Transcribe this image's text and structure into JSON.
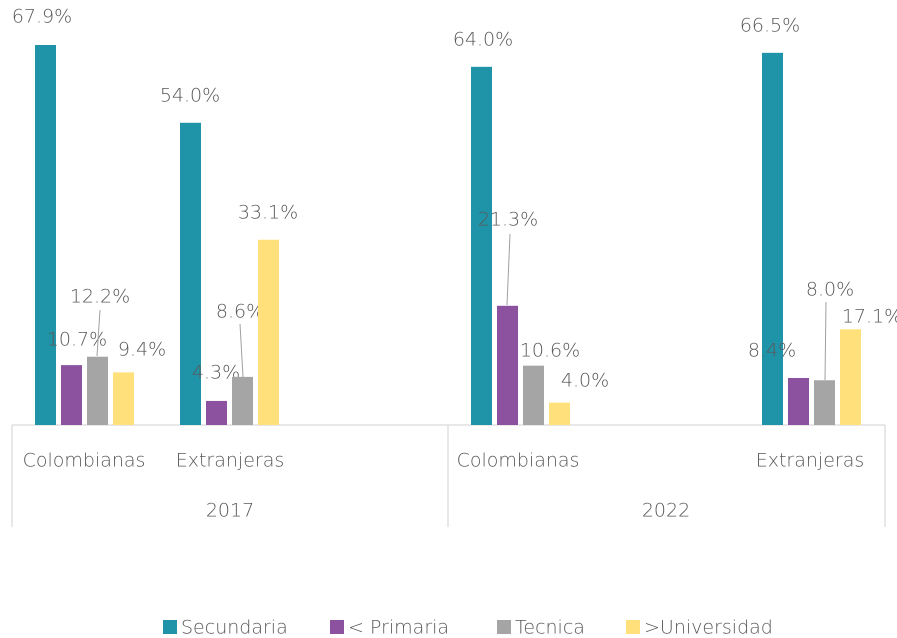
{
  "chart_data": {
    "type": "bar",
    "categories": [
      "Colombianas",
      "Extranjeras",
      "Colombianas",
      "Extranjeras"
    ],
    "category_groups": [
      "2017",
      "2022"
    ],
    "series": [
      {
        "name": "Secundaria",
        "color": "#1f94a8",
        "values": [
          67.9,
          54.0,
          64.0,
          66.5
        ],
        "value_labels": [
          "67.9%",
          "54.0%",
          "64.0%",
          "66.5%"
        ]
      },
      {
        "name": "< Primaria",
        "color": "#8c52a0",
        "values": [
          10.7,
          4.3,
          21.3,
          8.4
        ],
        "value_labels": [
          "10.7%",
          "4.3%",
          "21.3%",
          "8.4%"
        ]
      },
      {
        "name": "Tecnica",
        "color": "#a5a5a5",
        "values": [
          12.2,
          8.6,
          10.6,
          8.0
        ],
        "value_labels": [
          "12.2%",
          "8.6%",
          "10.6%",
          "8.0%"
        ]
      },
      {
        "name": ">Universidad",
        "color": "#ffe07a",
        "values": [
          9.4,
          33.1,
          4.0,
          17.1
        ],
        "value_labels": [
          "9.4%",
          "33.1%",
          "4.0%",
          "17.1%"
        ]
      }
    ]
  }
}
